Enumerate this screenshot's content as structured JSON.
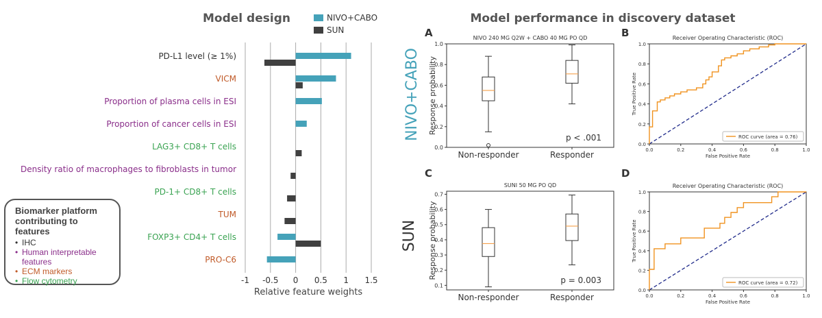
{
  "colors": {
    "nivo_cabo": "#45a2b9",
    "sun": "#404040",
    "ihc": "#333333",
    "human_interpretable": "#8a2e8a",
    "ecm": "#c05a28",
    "flow": "#3aa352",
    "box_median": "#f5a04b",
    "roc_curve": "#f0921e",
    "roc_diag": "#1f2a8a"
  },
  "headings": {
    "left": "Model design",
    "right": "Model performance in discovery dataset"
  },
  "row_labels": {
    "top": "NIVO+CABO",
    "bottom": "SUN"
  },
  "panel_letters": [
    "A",
    "B",
    "C",
    "D"
  ],
  "biomarker_legend": {
    "title": "Biomarker platform contributing to features",
    "items": [
      {
        "label": "IHC",
        "color_key": "ihc"
      },
      {
        "label": "Human interpretable features",
        "color_key": "human_interpretable"
      },
      {
        "label": "ECM markers",
        "color_key": "ecm"
      },
      {
        "label": "Flow cytometry",
        "color_key": "flow"
      }
    ]
  },
  "chart_data": [
    {
      "id": "feature_weights",
      "type": "bar",
      "orientation": "horizontal",
      "title": "Model design",
      "xlabel": "Relative feature weights",
      "xlim": [
        -1,
        1.5
      ],
      "xticks": [
        "-1",
        "-0.5",
        "0",
        "0.5",
        "1",
        "1.5"
      ],
      "grid": true,
      "legend_position": "top",
      "categories": [
        {
          "label": "PD-L1 level (≥ 1%)",
          "platform": "ihc"
        },
        {
          "label": "VICM",
          "platform": "ecm"
        },
        {
          "label": "Proportion of plasma cells in ESI",
          "platform": "human_interpretable"
        },
        {
          "label": "Proportion of cancer cells in ESI",
          "platform": "human_interpretable"
        },
        {
          "label": "LAG3+ CD8+ T cells",
          "platform": "flow"
        },
        {
          "label": "Density ratio of macrophages to fibroblasts in tumor",
          "platform": "human_interpretable"
        },
        {
          "label": "PD-1+ CD8+ T cells",
          "platform": "flow"
        },
        {
          "label": "TUM",
          "platform": "ecm"
        },
        {
          "label": "FOXP3+ CD4+ T cells",
          "platform": "flow"
        },
        {
          "label": "PRO-C6",
          "platform": "ecm"
        }
      ],
      "series": [
        {
          "name": "NIVO+CABO",
          "color_key": "nivo_cabo",
          "values": [
            1.1,
            0.8,
            0.52,
            0.22,
            null,
            null,
            null,
            null,
            -0.36,
            -0.57
          ]
        },
        {
          "name": "SUN",
          "color_key": "sun",
          "values": [
            -0.62,
            0.14,
            null,
            null,
            0.12,
            -0.1,
            -0.17,
            -0.22,
            0.5,
            null
          ]
        }
      ]
    },
    {
      "id": "A",
      "type": "box",
      "title": "NIVO 240 MG Q2W + CABO 40 MG PO QD",
      "ylabel": "Response probability",
      "ylim": [
        0,
        1.0
      ],
      "yticks": [
        "0.0",
        "0.2",
        "0.4",
        "0.6",
        "0.8",
        "1.0"
      ],
      "categories": [
        "Non-responder",
        "Responder"
      ],
      "boxes": [
        {
          "whisker_low": 0.15,
          "q1": 0.45,
          "median": 0.55,
          "q3": 0.68,
          "whisker_high": 0.88,
          "outliers": [
            0.02
          ]
        },
        {
          "whisker_low": 0.42,
          "q1": 0.62,
          "median": 0.71,
          "q3": 0.84,
          "whisker_high": 0.99,
          "outliers": []
        }
      ],
      "annotation": "p < .001"
    },
    {
      "id": "B",
      "type": "line",
      "title": "Receiver Operating Characteristic (ROC)",
      "xlabel": "False Positive Rate",
      "ylabel": "True Positive Rate",
      "xlim": [
        0,
        1.0
      ],
      "ylim": [
        0,
        1.0
      ],
      "ticks": [
        "0.0",
        "0.2",
        "0.4",
        "0.6",
        "0.8",
        "1.0"
      ],
      "legend": "ROC curve (area = 0.76)",
      "legend_position": "lower right",
      "curve": [
        [
          0,
          0
        ],
        [
          0,
          0.17
        ],
        [
          0.02,
          0.17
        ],
        [
          0.02,
          0.33
        ],
        [
          0.05,
          0.33
        ],
        [
          0.05,
          0.42
        ],
        [
          0.07,
          0.42
        ],
        [
          0.07,
          0.44
        ],
        [
          0.1,
          0.44
        ],
        [
          0.1,
          0.46
        ],
        [
          0.13,
          0.46
        ],
        [
          0.13,
          0.48
        ],
        [
          0.16,
          0.48
        ],
        [
          0.16,
          0.5
        ],
        [
          0.2,
          0.5
        ],
        [
          0.2,
          0.52
        ],
        [
          0.24,
          0.52
        ],
        [
          0.24,
          0.54
        ],
        [
          0.3,
          0.54
        ],
        [
          0.3,
          0.56
        ],
        [
          0.34,
          0.56
        ],
        [
          0.34,
          0.6
        ],
        [
          0.36,
          0.6
        ],
        [
          0.36,
          0.64
        ],
        [
          0.38,
          0.64
        ],
        [
          0.38,
          0.67
        ],
        [
          0.4,
          0.67
        ],
        [
          0.4,
          0.72
        ],
        [
          0.44,
          0.72
        ],
        [
          0.44,
          0.78
        ],
        [
          0.46,
          0.78
        ],
        [
          0.46,
          0.84
        ],
        [
          0.48,
          0.84
        ],
        [
          0.48,
          0.86
        ],
        [
          0.52,
          0.86
        ],
        [
          0.52,
          0.88
        ],
        [
          0.56,
          0.88
        ],
        [
          0.56,
          0.9
        ],
        [
          0.6,
          0.9
        ],
        [
          0.6,
          0.93
        ],
        [
          0.64,
          0.93
        ],
        [
          0.64,
          0.95
        ],
        [
          0.7,
          0.95
        ],
        [
          0.7,
          0.97
        ],
        [
          0.76,
          0.97
        ],
        [
          0.76,
          0.99
        ],
        [
          0.8,
          0.99
        ],
        [
          0.8,
          1.0
        ],
        [
          1.0,
          1.0
        ]
      ],
      "diagonal": true
    },
    {
      "id": "C",
      "type": "box",
      "title": "SUNI 50 MG PO QD",
      "ylabel": "Response probability",
      "ylim": [
        0.07,
        0.72
      ],
      "yticks": [
        "0.1",
        "0.2",
        "0.3",
        "0.4",
        "0.5",
        "0.6",
        "0.7"
      ],
      "categories": [
        "Non-responder",
        "Responder"
      ],
      "boxes": [
        {
          "whisker_low": 0.09,
          "q1": 0.29,
          "median": 0.375,
          "q3": 0.48,
          "whisker_high": 0.6,
          "outliers": []
        },
        {
          "whisker_low": 0.235,
          "q1": 0.395,
          "median": 0.49,
          "q3": 0.57,
          "whisker_high": 0.695,
          "outliers": []
        }
      ],
      "annotation": "p = 0.003"
    },
    {
      "id": "D",
      "type": "line",
      "title": "Receiver Operating Characteristic (ROC)",
      "xlabel": "False Positive Rate",
      "ylabel": "True Positive Rate",
      "xlim": [
        0,
        1.0
      ],
      "ylim": [
        0,
        1.0
      ],
      "ticks": [
        "0.0",
        "0.2",
        "0.4",
        "0.6",
        "0.8",
        "1.0"
      ],
      "legend": "ROC curve (area = 0.72)",
      "legend_position": "lower right",
      "curve": [
        [
          0,
          0
        ],
        [
          0,
          0.21
        ],
        [
          0.03,
          0.21
        ],
        [
          0.03,
          0.42
        ],
        [
          0.1,
          0.42
        ],
        [
          0.1,
          0.47
        ],
        [
          0.2,
          0.47
        ],
        [
          0.2,
          0.53
        ],
        [
          0.35,
          0.53
        ],
        [
          0.35,
          0.63
        ],
        [
          0.45,
          0.63
        ],
        [
          0.45,
          0.68
        ],
        [
          0.48,
          0.68
        ],
        [
          0.48,
          0.74
        ],
        [
          0.52,
          0.74
        ],
        [
          0.52,
          0.79
        ],
        [
          0.56,
          0.79
        ],
        [
          0.56,
          0.84
        ],
        [
          0.6,
          0.84
        ],
        [
          0.6,
          0.89
        ],
        [
          0.78,
          0.89
        ],
        [
          0.78,
          0.95
        ],
        [
          0.82,
          0.95
        ],
        [
          0.82,
          1.0
        ],
        [
          1.0,
          1.0
        ]
      ],
      "diagonal": true
    }
  ]
}
